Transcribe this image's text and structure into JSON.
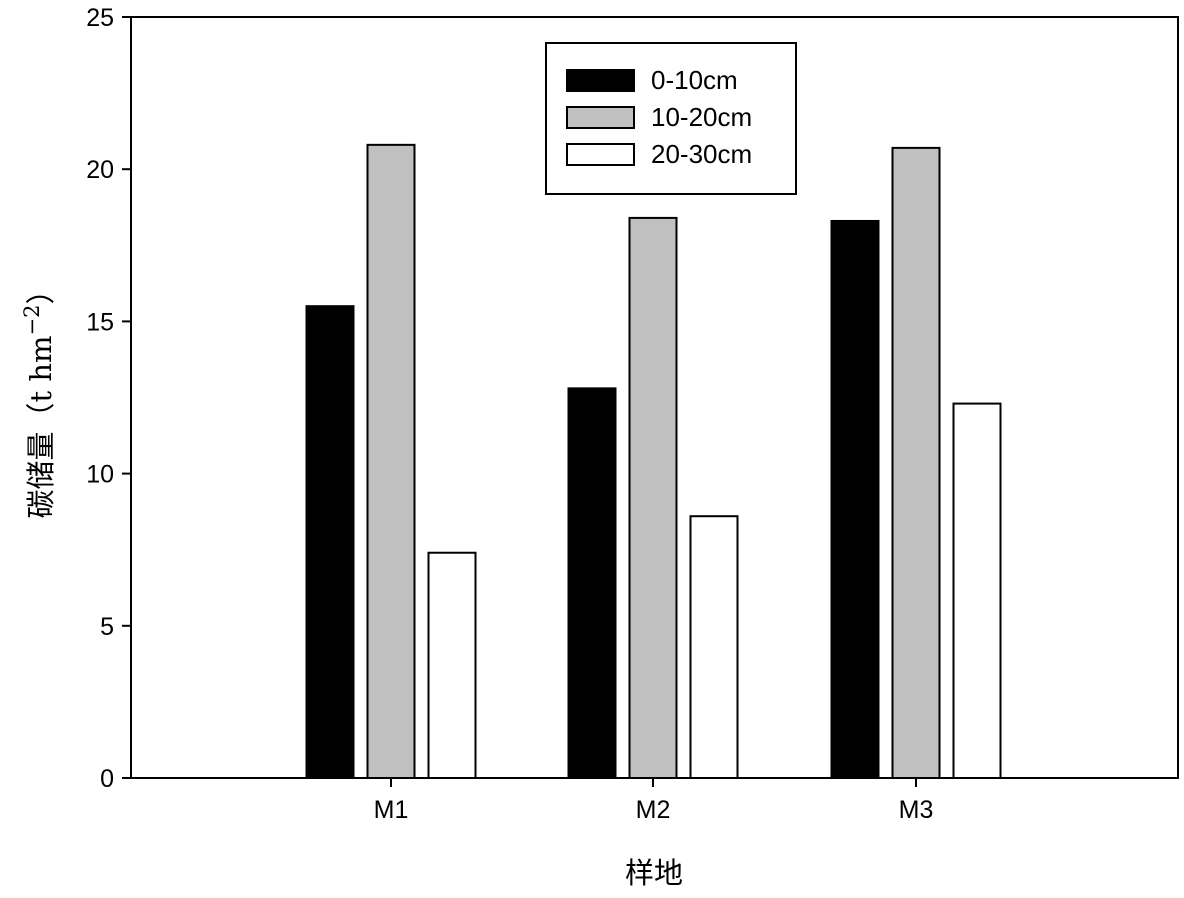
{
  "chart_data": {
    "type": "bar",
    "categories": [
      "M1",
      "M2",
      "M3"
    ],
    "series": [
      {
        "name": "0-10cm",
        "values": [
          15.5,
          12.8,
          18.3
        ],
        "color": "#000000"
      },
      {
        "name": "10-20cm",
        "values": [
          20.8,
          18.4,
          20.7
        ],
        "color": "#c0c0c0"
      },
      {
        "name": "20-30cm",
        "values": [
          7.4,
          8.6,
          12.3
        ],
        "color": "#ffffff"
      }
    ],
    "xlabel": "样地",
    "ylabel": "碳储量（t hm",
    "ylabel_sup": "−2",
    "ylabel_close": "）",
    "ylim": [
      0,
      25
    ],
    "yticks": [
      0,
      5,
      10,
      15,
      20,
      25
    ],
    "grid": false,
    "legend_position": "top-center"
  }
}
